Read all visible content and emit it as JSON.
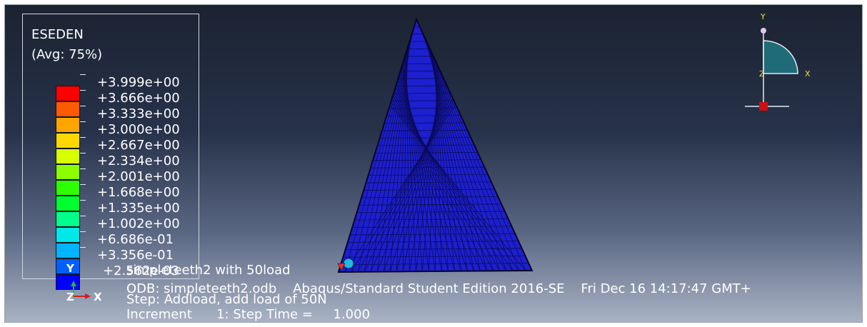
{
  "legend": {
    "variable": "ESEDEN",
    "averaging": "(Avg: 75%)",
    "values": [
      "+3.999e+00",
      "+3.666e+00",
      "+3.333e+00",
      "+3.000e+00",
      "+2.667e+00",
      "+2.334e+00",
      "+2.001e+00",
      "+1.668e+00",
      "+1.335e+00",
      "+1.002e+00",
      "+6.686e-01",
      "+3.356e-01",
      "+2.562e-03"
    ],
    "colors": [
      "#ff0000",
      "#ff5a00",
      "#ffa500",
      "#ffd800",
      "#d8ff00",
      "#8bff00",
      "#2dff00",
      "#00ff2e",
      "#00ff8c",
      "#00e8e8",
      "#00b4ff",
      "#0060ff",
      "#0000ff"
    ]
  },
  "viewport_info": {
    "title_line": "simpleteeth2 with 50load",
    "odb_line": "ODB: simpleteeth2.odb    Abaqus/Standard Student Edition 2016-SE    Fri Dec 16 14:17:47 GMT+",
    "step_line": "Step: Addload, add load of 50N",
    "increment_line": "Increment      1: Step Time =     1.000"
  },
  "triad_small": {
    "x": "X",
    "y": "Y",
    "z": "Z"
  },
  "view_triad": {
    "x": "X",
    "y": "Y",
    "z": "Z"
  }
}
